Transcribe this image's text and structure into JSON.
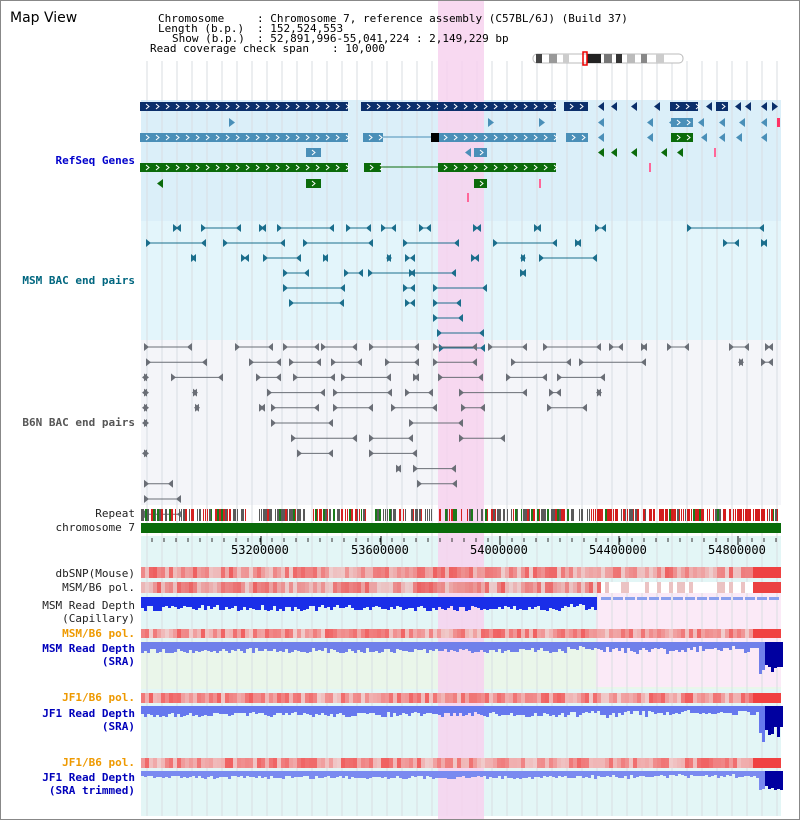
{
  "title": "Map View",
  "header": {
    "chromosome_key": "Chromosome",
    "chromosome_val": ": Chromosome 7, reference assembly (C57BL/6J) (Build 37)",
    "length_key": "Length (b.p.)",
    "length_val": ": 152,524,553",
    "show_key": "Show (b.p.)",
    "show_val": ": 52,891,996-55,041,224 : 2,149,229 bp",
    "coverage_key": "Read coverage check span",
    "coverage_val": ": 10,000"
  },
  "tracks": {
    "refseq": "RefSeq Genes",
    "msm_bac": "MSM BAC end pairs",
    "b6n_bac": "B6N BAC end pairs",
    "repeat": "Repeat",
    "chromosome": "chromosome 7",
    "dbsnp": "dbSNP(Mouse)",
    "msm_b6_pol1": "MSM/B6 pol.",
    "msm_depth_cap_1": "MSM Read Depth",
    "msm_depth_cap_2": "(Capillary)",
    "msm_b6_pol2": "MSM/B6 pol.",
    "msm_depth_sra_1": "MSM Read Depth",
    "msm_depth_sra_2": "(SRA)",
    "jf1_b6_pol1": "JF1/B6 pol.",
    "jf1_depth_sra_1": "JF1 Read Depth",
    "jf1_depth_sra_2": "(SRA)",
    "jf1_b6_pol2": "JF1/B6 pol.",
    "jf1_depth_trim_1": "JF1 Read Depth",
    "jf1_depth_trim_2": "(SRA trimmed)"
  },
  "axis": {
    "ticks": [
      "53200000",
      "53600000",
      "54000000",
      "54400000",
      "54800000"
    ]
  },
  "colors": {
    "refseq_bg": "#dbeff9",
    "msm_bac_bg": "#e3f5fb",
    "b6n_bac_bg": "#f4f5f9",
    "highlight": "#f7d2ef",
    "refseq_label": "#0000cc",
    "msm_label": "#00667f",
    "b6n_label": "#555555",
    "pol_label": "#ee9900",
    "depth_label": "#0000bb",
    "gene_dark": "#0b2f6b",
    "gene_mid": "#4a8fb8",
    "gene_green": "#0b6b0b",
    "chromosome_bar": "#0a6b0a"
  }
}
